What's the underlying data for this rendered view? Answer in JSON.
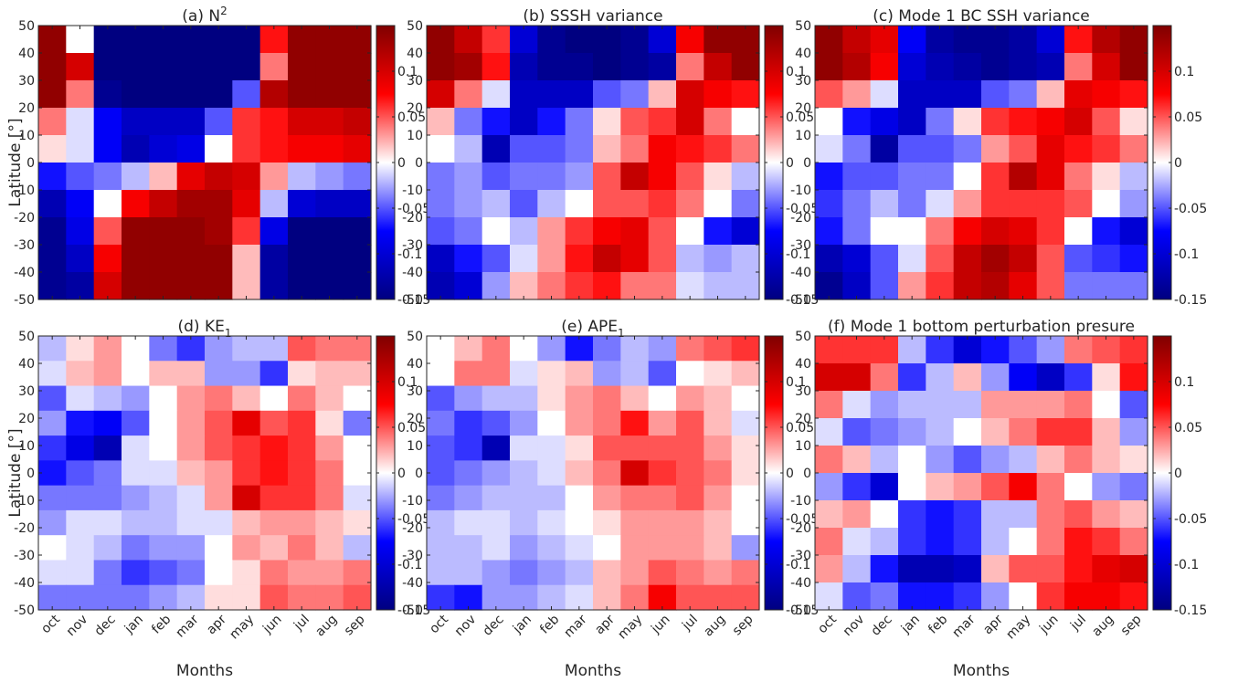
{
  "chart_data": {
    "type": "heatmap",
    "x_categories": [
      "oct",
      "nov",
      "dec",
      "jan",
      "feb",
      "mar",
      "apr",
      "may",
      "jun",
      "jul",
      "aug",
      "sep"
    ],
    "y_ticks": [
      50,
      40,
      30,
      20,
      10,
      0,
      -10,
      -20,
      -30,
      -40,
      -50
    ],
    "y_tick_labels": [
      "50",
      "40",
      "30",
      "20",
      "10",
      "0",
      "-10",
      "-20",
      "-30",
      "-40",
      "-50"
    ],
    "ylim": [
      -50,
      50
    ],
    "xlabel": "Months",
    "ylabel": "Latitude [°]",
    "colormap": {
      "name": "blue-white-red",
      "clim": [
        -0.15,
        0.15
      ],
      "stops": [
        "#000080",
        "#0000ff",
        "#ffffff",
        "#ff0000",
        "#800000"
      ],
      "tick_values": [
        0.1,
        0.05,
        0,
        -0.05,
        -0.1,
        -0.15
      ],
      "tick_labels": [
        "0.1",
        "0.05",
        "0",
        "-0.05",
        "-0.1",
        "-0.15"
      ]
    },
    "panels": [
      {
        "title_prefix": "(a) N",
        "title_sup": "2",
        "title_sub": "",
        "title_suffix": "",
        "values": [
          [
            0.14,
            0.0,
            -0.15,
            -0.15,
            -0.15,
            -0.15,
            -0.15,
            -0.15,
            0.07,
            0.14,
            0.14,
            0.14
          ],
          [
            0.14,
            0.1,
            -0.15,
            -0.15,
            -0.15,
            -0.15,
            -0.15,
            -0.15,
            0.04,
            0.14,
            0.14,
            0.14
          ],
          [
            0.14,
            0.04,
            -0.14,
            -0.15,
            -0.15,
            -0.15,
            -0.15,
            -0.05,
            0.12,
            0.14,
            0.14,
            0.14
          ],
          [
            0.04,
            -0.01,
            -0.08,
            -0.11,
            -0.11,
            -0.11,
            -0.05,
            0.06,
            0.07,
            0.1,
            0.1,
            0.11
          ],
          [
            0.01,
            -0.01,
            -0.08,
            -0.12,
            -0.1,
            -0.09,
            0.0,
            0.06,
            0.07,
            0.08,
            0.08,
            0.09
          ],
          [
            -0.07,
            -0.05,
            -0.04,
            -0.02,
            0.02,
            0.09,
            0.11,
            0.1,
            0.03,
            -0.02,
            -0.03,
            -0.04
          ],
          [
            -0.12,
            -0.08,
            0.0,
            0.08,
            0.11,
            0.13,
            0.13,
            0.09,
            -0.02,
            -0.1,
            -0.11,
            -0.11
          ],
          [
            -0.14,
            -0.09,
            0.05,
            0.14,
            0.14,
            0.14,
            0.13,
            0.06,
            -0.09,
            -0.15,
            -0.15,
            -0.15
          ],
          [
            -0.14,
            -0.11,
            0.08,
            0.14,
            0.14,
            0.14,
            0.14,
            0.02,
            -0.13,
            -0.15,
            -0.15,
            -0.15
          ],
          [
            -0.14,
            -0.13,
            0.1,
            0.14,
            0.14,
            0.14,
            0.14,
            0.02,
            -0.13,
            -0.15,
            -0.15,
            -0.15
          ]
        ]
      },
      {
        "title_prefix": "(b) SSSH variance",
        "title_sup": "",
        "title_sub": "",
        "title_suffix": "",
        "values": [
          [
            0.14,
            0.11,
            0.06,
            -0.1,
            -0.14,
            -0.15,
            -0.15,
            -0.14,
            -0.1,
            0.08,
            0.14,
            0.14
          ],
          [
            0.14,
            0.13,
            0.07,
            -0.12,
            -0.14,
            -0.14,
            -0.15,
            -0.14,
            -0.13,
            0.04,
            0.11,
            0.14
          ],
          [
            0.1,
            0.04,
            -0.01,
            -0.11,
            -0.11,
            -0.11,
            -0.05,
            -0.04,
            0.02,
            0.1,
            0.08,
            0.07
          ],
          [
            0.02,
            -0.04,
            -0.07,
            -0.11,
            -0.07,
            -0.04,
            0.01,
            0.05,
            0.06,
            0.1,
            0.04,
            0.0
          ],
          [
            0.0,
            -0.02,
            -0.12,
            -0.05,
            -0.05,
            -0.04,
            0.02,
            0.04,
            0.08,
            0.07,
            0.06,
            0.04
          ],
          [
            -0.04,
            -0.03,
            -0.05,
            -0.04,
            -0.04,
            -0.03,
            0.05,
            0.11,
            0.08,
            0.05,
            0.01,
            -0.02
          ],
          [
            -0.04,
            -0.03,
            -0.02,
            -0.05,
            -0.02,
            0.0,
            0.05,
            0.05,
            0.06,
            0.04,
            0.0,
            -0.04
          ],
          [
            -0.05,
            -0.04,
            0.0,
            -0.02,
            0.03,
            0.06,
            0.08,
            0.09,
            0.05,
            0.0,
            -0.07,
            -0.1
          ],
          [
            -0.11,
            -0.07,
            -0.05,
            -0.01,
            0.03,
            0.07,
            0.11,
            0.09,
            0.05,
            -0.02,
            -0.03,
            -0.02
          ],
          [
            -0.12,
            -0.1,
            -0.03,
            0.02,
            0.04,
            0.06,
            0.07,
            0.04,
            0.04,
            -0.01,
            -0.02,
            -0.02
          ]
        ]
      },
      {
        "title_prefix": "(c) Mode 1 BC SSH variance",
        "title_sup": "",
        "title_sub": "",
        "title_suffix": "",
        "values": [
          [
            0.14,
            0.11,
            0.09,
            -0.08,
            -0.13,
            -0.14,
            -0.14,
            -0.13,
            -0.1,
            0.07,
            0.12,
            0.14
          ],
          [
            0.14,
            0.12,
            0.08,
            -0.1,
            -0.12,
            -0.13,
            -0.14,
            -0.13,
            -0.12,
            0.04,
            0.1,
            0.14
          ],
          [
            0.05,
            0.03,
            -0.01,
            -0.11,
            -0.11,
            -0.11,
            -0.05,
            -0.04,
            0.02,
            0.09,
            0.08,
            0.07
          ],
          [
            0.0,
            -0.07,
            -0.09,
            -0.11,
            -0.04,
            0.01,
            0.06,
            0.07,
            0.08,
            0.1,
            0.05,
            0.01
          ],
          [
            -0.01,
            -0.04,
            -0.13,
            -0.05,
            -0.05,
            -0.04,
            0.03,
            0.05,
            0.09,
            0.07,
            0.06,
            0.04
          ],
          [
            -0.07,
            -0.05,
            -0.05,
            -0.04,
            -0.04,
            0.0,
            0.06,
            0.12,
            0.09,
            0.04,
            0.01,
            -0.02
          ],
          [
            -0.06,
            -0.04,
            -0.02,
            -0.04,
            -0.01,
            0.03,
            0.06,
            0.06,
            0.06,
            0.05,
            0.0,
            -0.03
          ],
          [
            -0.07,
            -0.04,
            0.0,
            0.0,
            0.04,
            0.08,
            0.1,
            0.09,
            0.06,
            0.0,
            -0.07,
            -0.1
          ],
          [
            -0.12,
            -0.1,
            -0.05,
            -0.01,
            0.05,
            0.11,
            0.13,
            0.11,
            0.05,
            -0.05,
            -0.06,
            -0.07
          ],
          [
            -0.14,
            -0.11,
            -0.05,
            0.03,
            0.06,
            0.11,
            0.12,
            0.09,
            0.05,
            -0.04,
            -0.04,
            -0.04
          ]
        ]
      },
      {
        "title_prefix": "(d) KE",
        "title_sup": "",
        "title_sub": "1",
        "title_suffix": "",
        "values": [
          [
            -0.02,
            0.01,
            0.03,
            0.0,
            -0.04,
            -0.06,
            -0.03,
            -0.02,
            -0.02,
            0.05,
            0.04,
            0.04
          ],
          [
            -0.01,
            0.02,
            0.03,
            0.0,
            0.02,
            0.02,
            -0.03,
            -0.03,
            -0.06,
            0.01,
            0.02,
            0.02
          ],
          [
            -0.05,
            -0.01,
            -0.02,
            -0.03,
            0.0,
            0.03,
            0.04,
            0.02,
            0.0,
            0.04,
            0.02,
            0.0
          ],
          [
            -0.03,
            -0.07,
            -0.08,
            -0.05,
            0.0,
            0.03,
            0.05,
            0.09,
            0.05,
            0.06,
            0.01,
            -0.04
          ],
          [
            -0.06,
            -0.09,
            -0.12,
            -0.01,
            0.0,
            0.03,
            0.05,
            0.06,
            0.07,
            0.06,
            0.03,
            0.0
          ],
          [
            -0.07,
            -0.05,
            -0.04,
            -0.01,
            -0.01,
            0.02,
            0.03,
            0.06,
            0.07,
            0.06,
            0.04,
            0.0
          ],
          [
            -0.04,
            -0.04,
            -0.04,
            -0.03,
            -0.02,
            -0.01,
            0.03,
            0.1,
            0.06,
            0.06,
            0.04,
            -0.01
          ],
          [
            -0.03,
            -0.01,
            -0.01,
            -0.02,
            -0.02,
            -0.01,
            -0.01,
            0.02,
            0.03,
            0.03,
            0.02,
            0.01
          ],
          [
            0.0,
            -0.01,
            -0.02,
            -0.04,
            -0.03,
            -0.03,
            0.0,
            0.03,
            0.02,
            0.04,
            0.02,
            -0.02
          ],
          [
            -0.01,
            -0.01,
            -0.04,
            -0.06,
            -0.05,
            -0.04,
            0.0,
            0.01,
            0.04,
            0.03,
            0.03,
            0.04
          ],
          [
            -0.04,
            -0.04,
            -0.04,
            -0.04,
            -0.03,
            -0.02,
            0.01,
            0.01,
            0.05,
            0.04,
            0.04,
            0.05
          ]
        ]
      },
      {
        "title_prefix": "(e) APE",
        "title_sup": "",
        "title_sub": "1",
        "title_suffix": "",
        "values": [
          [
            0.0,
            0.02,
            0.04,
            0.0,
            -0.03,
            -0.07,
            -0.04,
            -0.02,
            -0.03,
            0.04,
            0.05,
            0.06
          ],
          [
            0.0,
            0.04,
            0.04,
            -0.01,
            0.01,
            0.02,
            -0.03,
            -0.02,
            -0.05,
            0.0,
            0.01,
            0.02
          ],
          [
            -0.05,
            -0.03,
            -0.02,
            -0.02,
            0.01,
            0.03,
            0.04,
            0.02,
            0.0,
            0.03,
            0.02,
            0.0
          ],
          [
            -0.04,
            -0.06,
            -0.05,
            -0.03,
            0.0,
            0.03,
            0.04,
            0.07,
            0.03,
            0.05,
            0.02,
            -0.01
          ],
          [
            -0.05,
            -0.06,
            -0.12,
            -0.01,
            -0.01,
            0.01,
            0.05,
            0.05,
            0.05,
            0.05,
            0.03,
            0.01
          ],
          [
            -0.05,
            -0.04,
            -0.03,
            -0.02,
            -0.01,
            0.02,
            0.04,
            0.1,
            0.06,
            0.05,
            0.04,
            0.01
          ],
          [
            -0.04,
            -0.03,
            -0.02,
            -0.02,
            -0.02,
            0.0,
            0.03,
            0.04,
            0.04,
            0.05,
            0.03,
            0.0
          ],
          [
            -0.02,
            -0.01,
            -0.01,
            -0.02,
            -0.01,
            0.0,
            0.01,
            0.03,
            0.03,
            0.03,
            0.02,
            0.0
          ],
          [
            -0.02,
            -0.02,
            -0.01,
            -0.03,
            -0.02,
            -0.01,
            0.0,
            0.03,
            0.03,
            0.03,
            0.02,
            -0.03
          ],
          [
            -0.02,
            -0.02,
            -0.03,
            -0.04,
            -0.03,
            -0.02,
            0.02,
            0.03,
            0.05,
            0.04,
            0.03,
            0.04
          ],
          [
            -0.06,
            -0.07,
            -0.03,
            -0.03,
            -0.02,
            -0.01,
            0.02,
            0.04,
            0.08,
            0.05,
            0.05,
            0.05
          ]
        ]
      },
      {
        "title_prefix": "(f) Mode 1 bottom perturbation presure",
        "title_sup": "",
        "title_sub": "",
        "title_suffix": "",
        "values": [
          [
            0.06,
            0.06,
            0.06,
            -0.02,
            -0.06,
            -0.1,
            -0.07,
            -0.05,
            -0.03,
            0.04,
            0.05,
            0.06
          ],
          [
            0.1,
            0.1,
            0.04,
            -0.06,
            -0.02,
            0.02,
            -0.03,
            -0.08,
            -0.11,
            -0.06,
            0.01,
            0.07
          ],
          [
            0.04,
            -0.01,
            -0.03,
            -0.02,
            -0.02,
            -0.02,
            0.03,
            0.03,
            0.03,
            0.04,
            0.0,
            -0.05
          ],
          [
            -0.01,
            -0.05,
            -0.04,
            -0.03,
            -0.02,
            0.0,
            0.02,
            0.04,
            0.06,
            0.06,
            0.02,
            -0.03
          ],
          [
            0.04,
            0.02,
            -0.02,
            0.0,
            -0.03,
            -0.05,
            -0.03,
            -0.02,
            0.02,
            0.04,
            0.02,
            0.01
          ],
          [
            -0.03,
            -0.06,
            -0.1,
            0.0,
            0.02,
            0.03,
            0.05,
            0.08,
            0.04,
            0.0,
            -0.03,
            -0.04
          ],
          [
            0.02,
            0.03,
            0.0,
            -0.06,
            -0.07,
            -0.06,
            -0.02,
            -0.02,
            0.04,
            0.05,
            0.03,
            0.02
          ],
          [
            0.04,
            -0.01,
            -0.02,
            -0.06,
            -0.07,
            -0.06,
            -0.02,
            0.0,
            0.04,
            0.07,
            0.06,
            0.04
          ],
          [
            0.03,
            -0.02,
            -0.07,
            -0.12,
            -0.12,
            -0.11,
            0.02,
            0.05,
            0.05,
            0.07,
            0.09,
            0.1
          ],
          [
            -0.01,
            -0.05,
            -0.04,
            -0.07,
            -0.07,
            -0.06,
            -0.03,
            0.0,
            0.06,
            0.08,
            0.08,
            0.07
          ]
        ]
      }
    ]
  }
}
